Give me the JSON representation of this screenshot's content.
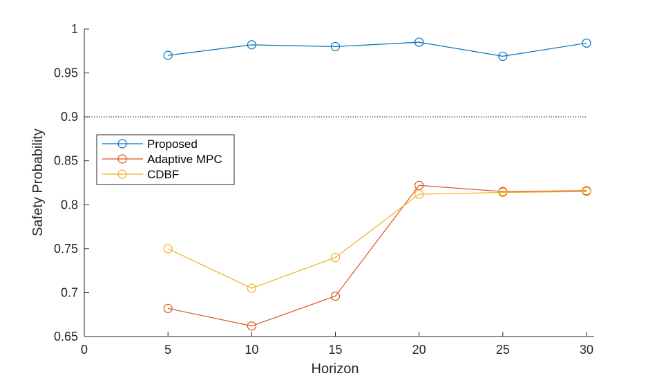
{
  "chart_data": {
    "type": "line",
    "title": "",
    "xlabel": "Horizon",
    "ylabel": "Safety Probability",
    "xlim": [
      0,
      30
    ],
    "ylim": [
      0.65,
      1
    ],
    "xticks": [
      0,
      5,
      10,
      15,
      20,
      25,
      30
    ],
    "xtick_labels": [
      "0",
      "5",
      "10",
      "15",
      "20",
      "25",
      "30"
    ],
    "yticks": [
      0.65,
      0.7,
      0.75,
      0.8,
      0.85,
      0.9,
      0.95,
      1
    ],
    "ytick_labels": [
      "0.65",
      "0.7",
      "0.75",
      "0.8",
      "0.85",
      "0.9",
      "0.95",
      "1"
    ],
    "grid": false,
    "marker": "circle-open",
    "legend_position": "left",
    "reference_line": {
      "y": 0.9,
      "style": "dotted",
      "color": "#000000"
    },
    "x": [
      5,
      10,
      15,
      20,
      25,
      30
    ],
    "series": [
      {
        "name": "Proposed",
        "color": "#0072BD",
        "values": [
          0.97,
          0.982,
          0.98,
          0.985,
          0.969,
          0.984
        ]
      },
      {
        "name": "Adaptive MPC",
        "color": "#D95319",
        "values": [
          0.682,
          0.662,
          0.696,
          0.822,
          0.815,
          0.816
        ]
      },
      {
        "name": "CDBF",
        "color": "#EDB120",
        "values": [
          0.75,
          0.705,
          0.74,
          0.812,
          0.814,
          0.815
        ]
      }
    ]
  }
}
